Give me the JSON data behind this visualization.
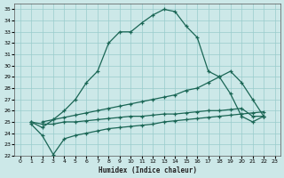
{
  "xlabel": "Humidex (Indice chaleur)",
  "bg_color": "#cce8e8",
  "grid_color": "#99cccc",
  "line_color": "#1a6655",
  "xlim": [
    -0.5,
    23.5
  ],
  "ylim": [
    22,
    35.5
  ],
  "xticks": [
    0,
    1,
    2,
    3,
    4,
    5,
    6,
    7,
    8,
    9,
    10,
    11,
    12,
    13,
    14,
    15,
    16,
    17,
    18,
    19,
    20,
    21,
    22,
    23
  ],
  "yticks": [
    22,
    23,
    24,
    25,
    26,
    27,
    28,
    29,
    30,
    31,
    32,
    33,
    34,
    35
  ],
  "series": [
    {
      "x": [
        1,
        2,
        3,
        4,
        5,
        6,
        7,
        8,
        9,
        10,
        11,
        12,
        13,
        14,
        15,
        16,
        17,
        18,
        19,
        20,
        21,
        22
      ],
      "y": [
        25.0,
        24.5,
        25.2,
        26.0,
        27.0,
        28.5,
        29.5,
        32.0,
        33.0,
        33.0,
        33.8,
        34.5,
        35.0,
        34.8,
        33.5,
        32.5,
        29.5,
        29.0,
        27.5,
        25.5,
        25.0,
        25.5
      ]
    },
    {
      "x": [
        2,
        3,
        4,
        5,
        6,
        7,
        8,
        9,
        10,
        11,
        12,
        13,
        14,
        15,
        16,
        17,
        18,
        19,
        20,
        21,
        22
      ],
      "y": [
        25.0,
        25.2,
        25.4,
        25.6,
        25.8,
        26.0,
        26.2,
        26.4,
        26.6,
        26.8,
        27.0,
        27.2,
        27.4,
        27.8,
        28.0,
        28.5,
        29.0,
        29.5,
        28.5,
        27.0,
        25.5
      ]
    },
    {
      "x": [
        1,
        2,
        3,
        4,
        5,
        6,
        7,
        8,
        9,
        10,
        11,
        12,
        13,
        14,
        15,
        16,
        17,
        18,
        19,
        20,
        21,
        22
      ],
      "y": [
        25.0,
        24.8,
        24.8,
        25.0,
        25.0,
        25.1,
        25.2,
        25.3,
        25.4,
        25.5,
        25.5,
        25.6,
        25.7,
        25.7,
        25.8,
        25.9,
        26.0,
        26.0,
        26.1,
        26.2,
        25.5,
        25.5
      ]
    },
    {
      "x": [
        1,
        2,
        3,
        4,
        5,
        6,
        7,
        8,
        9,
        10,
        11,
        12,
        13,
        14,
        15,
        16,
        17,
        18,
        19,
        20,
        21,
        22
      ],
      "y": [
        24.8,
        23.8,
        22.1,
        23.5,
        23.8,
        24.0,
        24.2,
        24.4,
        24.5,
        24.6,
        24.7,
        24.8,
        25.0,
        25.1,
        25.2,
        25.3,
        25.4,
        25.5,
        25.6,
        25.7,
        25.8,
        25.9
      ]
    }
  ]
}
